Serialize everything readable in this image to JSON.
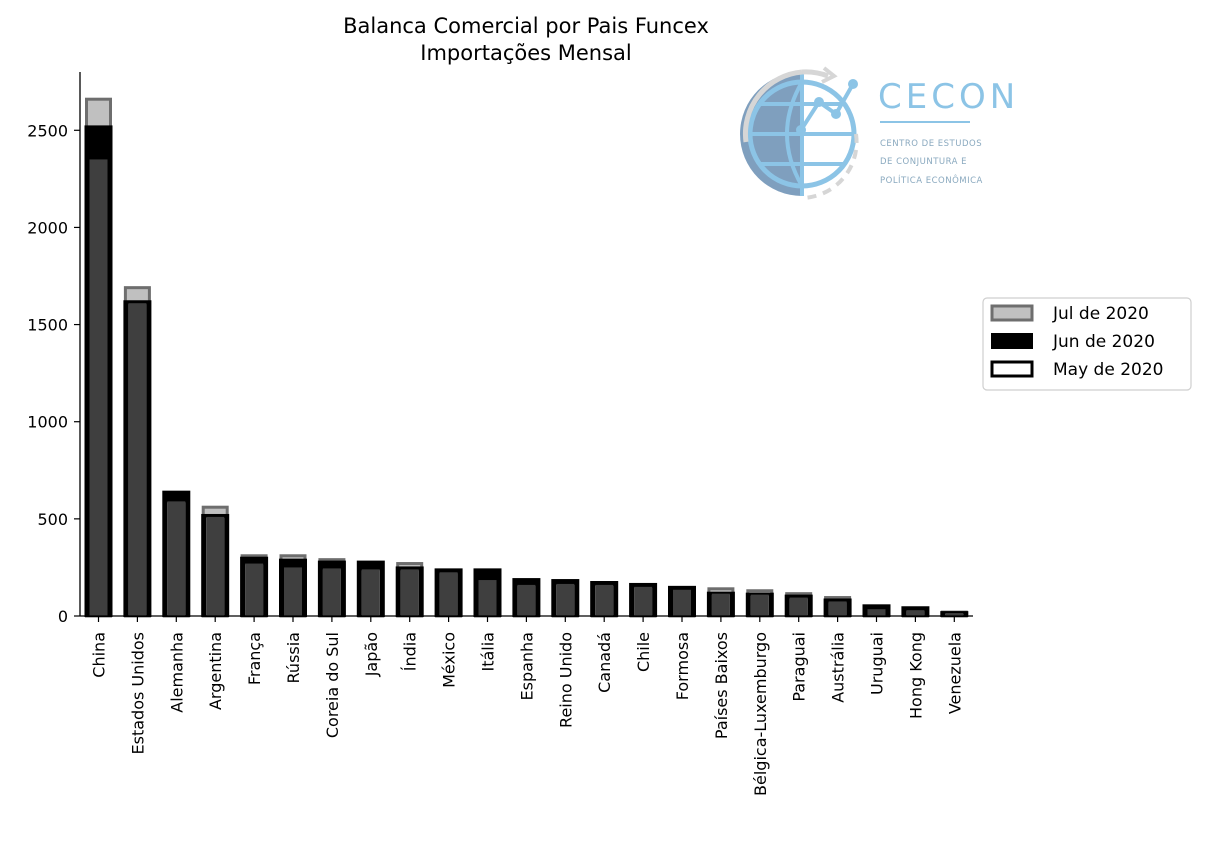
{
  "chart_data": {
    "type": "bar",
    "title": "Balanca Comercial por Pais Funcex",
    "subtitle": "Importações Mensal",
    "xlabel": "",
    "ylabel": "",
    "ylim": [
      0,
      2800
    ],
    "yticks": [
      0,
      500,
      1000,
      1500,
      2000,
      2500
    ],
    "grid": false,
    "legend_position": "right",
    "categories": [
      "China",
      "Estados Unidos",
      "Alemanha",
      "Argentina",
      "França",
      "Rússia",
      "Coreia do Sul",
      "Japão",
      "Índia",
      "México",
      "Itália",
      "Espanha",
      "Reino Unido",
      "Canadá",
      "Chile",
      "Formosa",
      "Países Baixos",
      "Bélgica-Luxemburgo",
      "Paraguai",
      "Austrália",
      "Uruguai",
      "Hong Kong",
      "Venezuela"
    ],
    "series": [
      {
        "name": "Jul de 2020",
        "color": "#c0c0c0",
        "edge": "#6e6e6e",
        "values": [
          2660,
          1690,
          600,
          560,
          310,
          310,
          290,
          270,
          270,
          230,
          200,
          175,
          175,
          170,
          160,
          145,
          140,
          130,
          115,
          95,
          50,
          40,
          20
        ]
      },
      {
        "name": "Jun de 2020",
        "color": "#000000",
        "edge": "#000000",
        "values": [
          2520,
          1620,
          640,
          520,
          300,
          290,
          280,
          280,
          250,
          240,
          240,
          190,
          185,
          175,
          165,
          150,
          120,
          115,
          105,
          85,
          55,
          45,
          20
        ]
      },
      {
        "name": "May de 2020",
        "color": "#ffffff",
        "edge": "#000000",
        "values": [
          2350,
          1610,
          590,
          510,
          270,
          250,
          245,
          240,
          240,
          225,
          185,
          160,
          165,
          160,
          150,
          135,
          115,
          110,
          95,
          75,
          35,
          30,
          15
        ]
      }
    ]
  },
  "logo": {
    "title": "CECON",
    "sub1": "CENTRO DE ESTUDOS",
    "sub2": "DE CONJUNTURA E",
    "sub3": "POLÍTICA ECONÔMICA"
  }
}
